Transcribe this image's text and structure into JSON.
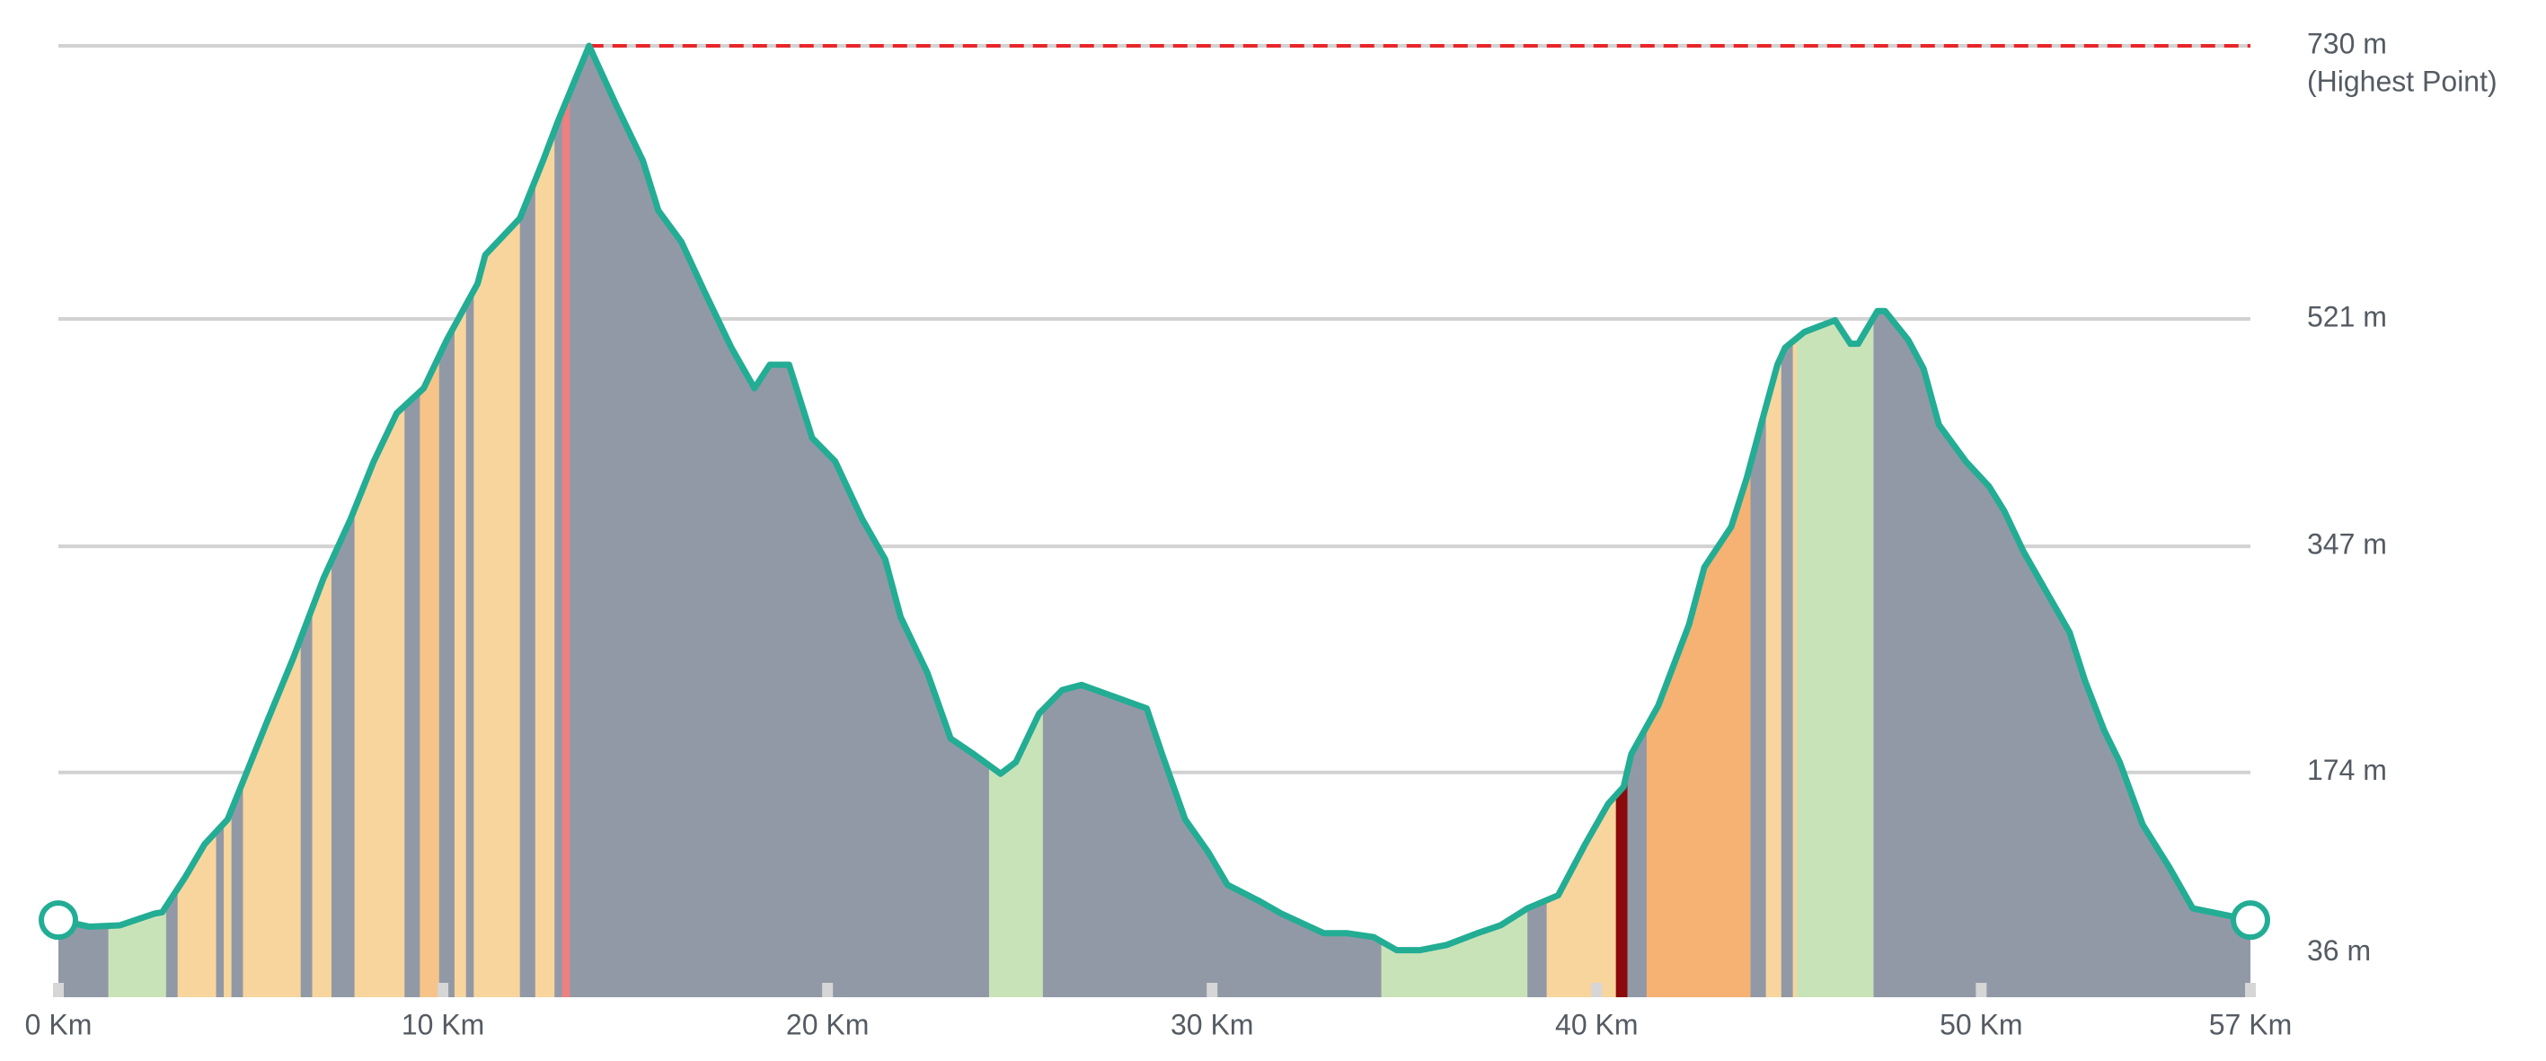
{
  "chart_data": {
    "type": "elevation-profile",
    "x": [
      0,
      0.8,
      1.6,
      2.5,
      2.7,
      3.3,
      3.8,
      4.4,
      4.8,
      5.4,
      6.1,
      6.9,
      7.6,
      8.2,
      8.8,
      9.5,
      10.1,
      10.9,
      11.1,
      12.0,
      12.6,
      13.0,
      13.8,
      14.5,
      15.2,
      15.6,
      16.2,
      16.8,
      17.5,
      18.1,
      18.5,
      19.0,
      19.6,
      20.2,
      20.9,
      21.5,
      21.9,
      22.6,
      23.2,
      23.8,
      24.5,
      24.9,
      25.5,
      26.1,
      26.6,
      28.3,
      28.7,
      29.3,
      29.9,
      30.4,
      31.2,
      31.8,
      32.9,
      33.5,
      34.2,
      34.8,
      35.4,
      36.1,
      36.9,
      37.5,
      38.2,
      39.0,
      39.7,
      40.3,
      40.7,
      40.9,
      41.6,
      42.0,
      42.4,
      42.8,
      43.5,
      43.9,
      44.3,
      44.7,
      44.9,
      45.4,
      46.2,
      46.6,
      46.8,
      47.3,
      47.5,
      48.1,
      48.5,
      48.9,
      49.6,
      50.2,
      50.6,
      51.1,
      51.7,
      52.3,
      52.7,
      53.2,
      53.6,
      54.2,
      54.9,
      55.5,
      57.0
    ],
    "values": [
      61,
      56,
      57,
      66,
      67,
      94,
      119,
      138,
      167,
      211,
      261,
      323,
      368,
      412,
      449,
      468,
      505,
      548,
      570,
      598,
      642,
      673,
      730,
      685,
      642,
      604,
      580,
      542,
      499,
      468,
      486,
      486,
      430,
      412,
      368,
      337,
      293,
      250,
      200,
      188,
      173,
      182,
      219,
      237,
      241,
      223,
      188,
      138,
      113,
      88,
      76,
      66,
      51,
      51,
      48,
      38,
      38,
      42,
      51,
      57,
      70,
      80,
      119,
      150,
      163,
      188,
      225,
      256,
      287,
      331,
      362,
      399,
      443,
      486,
      499,
      511,
      520,
      502,
      502,
      527,
      527,
      505,
      483,
      440,
      412,
      393,
      374,
      343,
      312,
      281,
      244,
      206,
      182,
      134,
      101,
      70,
      61
    ],
    "line_color": "#22ad94",
    "peak_line_color": "#e8262a",
    "grid_color": "#d2d2d2",
    "peak_label": "(Highest Point)",
    "segments": [
      {
        "start": 0,
        "end": 1.3,
        "color": "#9299a6"
      },
      {
        "start": 1.3,
        "end": 2.8,
        "color": "#c9e3b9"
      },
      {
        "start": 2.8,
        "end": 3.1,
        "color": "#9299a6"
      },
      {
        "start": 3.1,
        "end": 4.1,
        "color": "#f8d59d"
      },
      {
        "start": 4.1,
        "end": 4.3,
        "color": "#9299a6"
      },
      {
        "start": 4.3,
        "end": 4.5,
        "color": "#f8d59d"
      },
      {
        "start": 4.5,
        "end": 4.8,
        "color": "#9299a6"
      },
      {
        "start": 4.8,
        "end": 6.3,
        "color": "#f8d59d"
      },
      {
        "start": 6.3,
        "end": 6.6,
        "color": "#9299a6"
      },
      {
        "start": 6.6,
        "end": 7.1,
        "color": "#f8d59d"
      },
      {
        "start": 7.1,
        "end": 7.7,
        "color": "#9299a6"
      },
      {
        "start": 7.7,
        "end": 9.0,
        "color": "#f8d59d"
      },
      {
        "start": 9.0,
        "end": 9.4,
        "color": "#9299a6"
      },
      {
        "start": 9.4,
        "end": 9.9,
        "color": "#f6c488"
      },
      {
        "start": 9.9,
        "end": 10.3,
        "color": "#9299a6"
      },
      {
        "start": 10.3,
        "end": 10.6,
        "color": "#f8d59d"
      },
      {
        "start": 10.6,
        "end": 10.8,
        "color": "#9299a6"
      },
      {
        "start": 10.8,
        "end": 12.0,
        "color": "#f8d59d"
      },
      {
        "start": 12.0,
        "end": 12.4,
        "color": "#9299a6"
      },
      {
        "start": 12.4,
        "end": 12.9,
        "color": "#f8d59d"
      },
      {
        "start": 12.9,
        "end": 13.1,
        "color": "#9299a6"
      },
      {
        "start": 13.1,
        "end": 13.3,
        "color": "#ee8080"
      },
      {
        "start": 13.3,
        "end": 24.2,
        "color": "#9299a6"
      },
      {
        "start": 24.2,
        "end": 25.6,
        "color": "#c9e3b9"
      },
      {
        "start": 25.6,
        "end": 34.4,
        "color": "#9299a6"
      },
      {
        "start": 34.4,
        "end": 38.2,
        "color": "#c9e3b9"
      },
      {
        "start": 38.2,
        "end": 38.7,
        "color": "#9299a6"
      },
      {
        "start": 38.7,
        "end": 40.5,
        "color": "#f8d59d"
      },
      {
        "start": 40.5,
        "end": 40.8,
        "color": "#8b0a0a"
      },
      {
        "start": 40.8,
        "end": 41.3,
        "color": "#9299a6"
      },
      {
        "start": 41.3,
        "end": 44.0,
        "color": "#f5b273"
      },
      {
        "start": 44.0,
        "end": 44.4,
        "color": "#9299a6"
      },
      {
        "start": 44.4,
        "end": 44.8,
        "color": "#f8d59d"
      },
      {
        "start": 44.8,
        "end": 45.1,
        "color": "#9299a6"
      },
      {
        "start": 45.1,
        "end": 45.2,
        "color": "#f8d59d"
      },
      {
        "start": 45.2,
        "end": 47.2,
        "color": "#c9e3b9"
      },
      {
        "start": 47.2,
        "end": 57,
        "color": "#9299a6"
      }
    ],
    "xlim": [
      0,
      57
    ],
    "xticks": [
      {
        "value": 0,
        "label": "0 Km"
      },
      {
        "value": 10,
        "label": "10 Km"
      },
      {
        "value": 20,
        "label": "20 Km"
      },
      {
        "value": 30,
        "label": "30 Km"
      },
      {
        "value": 40,
        "label": "40 Km"
      },
      {
        "value": 50,
        "label": "50 Km"
      },
      {
        "value": 57,
        "label": "57 Km"
      }
    ],
    "ylim": [
      2,
      730
    ],
    "yticks": [
      {
        "value": 36,
        "label": "36 m"
      },
      {
        "value": 174,
        "label": "174 m"
      },
      {
        "value": 347,
        "label": "347 m"
      },
      {
        "value": 521,
        "label": "521 m"
      },
      {
        "value": 730,
        "label": "730 m"
      }
    ],
    "grid": true
  }
}
